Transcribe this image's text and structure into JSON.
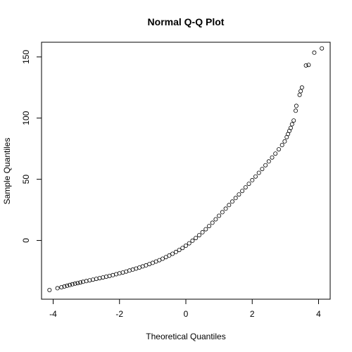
{
  "chart_data": {
    "type": "scatter",
    "title": "Normal Q-Q Plot",
    "xlabel": "Theoretical Quantiles",
    "ylabel": "Sample Quantiles",
    "xlim": [
      -4.35,
      4.35
    ],
    "ylim": [
      -48,
      162
    ],
    "xticks": [
      -4,
      -2,
      0,
      2,
      4
    ],
    "yticks": [
      0,
      50,
      100,
      150
    ],
    "xtick_labels": [
      "-4",
      "-2",
      "0",
      "2",
      "4"
    ],
    "ytick_labels": [
      "0",
      "50",
      "100",
      "150"
    ],
    "grid": false,
    "marker": "open-circle",
    "points": [
      [
        -4.11,
        -40.5
      ],
      [
        -3.87,
        -39.0
      ],
      [
        -3.75,
        -38.2
      ],
      [
        -3.66,
        -37.6
      ],
      [
        -3.58,
        -37.0
      ],
      [
        -3.5,
        -36.4
      ],
      [
        -3.42,
        -35.8
      ],
      [
        -3.34,
        -35.3
      ],
      [
        -3.26,
        -34.8
      ],
      [
        -3.18,
        -34.3
      ],
      [
        -3.1,
        -33.8
      ],
      [
        -3.0,
        -33.2
      ],
      [
        -2.9,
        -32.6
      ],
      [
        -2.8,
        -32.0
      ],
      [
        -2.7,
        -31.4
      ],
      [
        -2.6,
        -30.8
      ],
      [
        -2.5,
        -30.2
      ],
      [
        -2.4,
        -29.6
      ],
      [
        -2.3,
        -29.0
      ],
      [
        -2.2,
        -28.3
      ],
      [
        -2.1,
        -27.6
      ],
      [
        -2.0,
        -26.9
      ],
      [
        -1.9,
        -26.2
      ],
      [
        -1.8,
        -25.4
      ],
      [
        -1.7,
        -24.6
      ],
      [
        -1.6,
        -23.8
      ],
      [
        -1.5,
        -23.0
      ],
      [
        -1.4,
        -22.1
      ],
      [
        -1.3,
        -21.2
      ],
      [
        -1.2,
        -20.3
      ],
      [
        -1.1,
        -19.3
      ],
      [
        -1.0,
        -18.3
      ],
      [
        -0.9,
        -17.2
      ],
      [
        -0.8,
        -16.1
      ],
      [
        -0.7,
        -14.9
      ],
      [
        -0.6,
        -13.6
      ],
      [
        -0.5,
        -12.3
      ],
      [
        -0.4,
        -10.9
      ],
      [
        -0.3,
        -9.4
      ],
      [
        -0.2,
        -7.8
      ],
      [
        -0.1,
        -6.1
      ],
      [
        0.0,
        -4.3
      ],
      [
        0.1,
        -2.3
      ],
      [
        0.2,
        -0.2
      ],
      [
        0.3,
        2.0
      ],
      [
        0.4,
        4.3
      ],
      [
        0.5,
        6.7
      ],
      [
        0.6,
        9.2
      ],
      [
        0.7,
        11.8
      ],
      [
        0.8,
        14.5
      ],
      [
        0.9,
        17.3
      ],
      [
        1.0,
        20.2
      ],
      [
        1.1,
        23.1
      ],
      [
        1.2,
        26.0
      ],
      [
        1.3,
        28.9
      ],
      [
        1.4,
        31.8
      ],
      [
        1.5,
        34.7
      ],
      [
        1.6,
        37.6
      ],
      [
        1.7,
        40.5
      ],
      [
        1.8,
        43.4
      ],
      [
        1.9,
        46.3
      ],
      [
        2.0,
        49.3
      ],
      [
        2.1,
        52.3
      ],
      [
        2.2,
        55.3
      ],
      [
        2.3,
        58.4
      ],
      [
        2.4,
        61.5
      ],
      [
        2.5,
        64.6
      ],
      [
        2.6,
        67.8
      ],
      [
        2.7,
        71.0
      ],
      [
        2.8,
        74.5
      ],
      [
        2.9,
        78.0
      ],
      [
        2.98,
        81.0
      ],
      [
        3.04,
        84.5
      ],
      [
        3.08,
        87.0
      ],
      [
        3.12,
        89.5
      ],
      [
        3.16,
        92.0
      ],
      [
        3.2,
        95.0
      ],
      [
        3.25,
        98.0
      ],
      [
        3.31,
        106.0
      ],
      [
        3.33,
        110.0
      ],
      [
        3.43,
        119.0
      ],
      [
        3.46,
        122.0
      ],
      [
        3.5,
        125.0
      ],
      [
        3.62,
        143.0
      ],
      [
        3.7,
        143.5
      ],
      [
        3.87,
        153.5
      ],
      [
        4.1,
        157.0
      ]
    ]
  }
}
